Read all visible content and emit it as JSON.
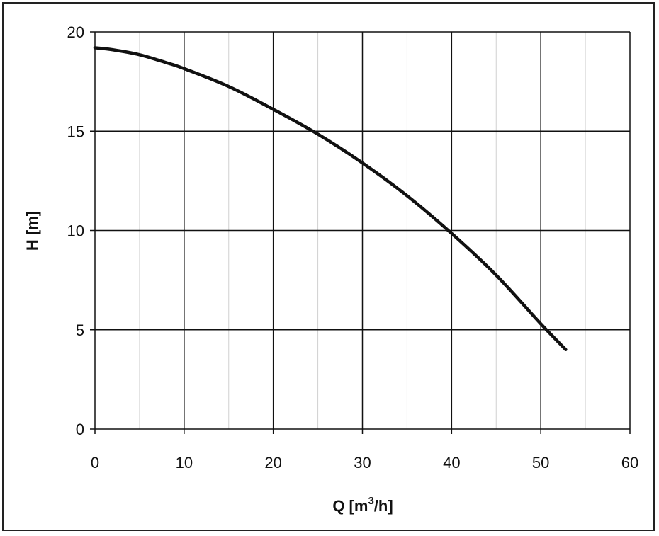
{
  "chart_data": {
    "type": "line",
    "title": "",
    "xlabel": "Q [m3/h]",
    "xlabel_parts": {
      "before": "Q [m",
      "sup": "3",
      "after": "/h]"
    },
    "ylabel": "H [m]",
    "xlim": [
      0,
      60
    ],
    "ylim": [
      0,
      20
    ],
    "x_ticks": [
      "0",
      "10",
      "20",
      "30",
      "40",
      "50",
      "60"
    ],
    "y_ticks": [
      "0",
      "5",
      "10",
      "15",
      "20"
    ],
    "x_major_step": 10,
    "x_minor_step": 5,
    "y_major_step": 5,
    "grid": true,
    "legend": "none",
    "line_color": "#111111",
    "series": [
      {
        "x": [
          0,
          2,
          5,
          8,
          10,
          15,
          20,
          25,
          30,
          35,
          40,
          45,
          50,
          52.8
        ],
        "y": [
          19.2,
          19.1,
          18.85,
          18.45,
          18.15,
          17.25,
          16.1,
          14.85,
          13.4,
          11.75,
          9.85,
          7.75,
          5.3,
          4.0
        ]
      }
    ]
  }
}
